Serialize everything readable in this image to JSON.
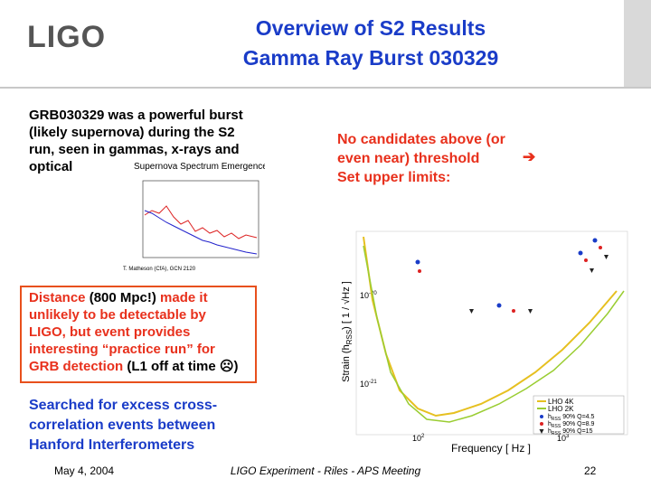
{
  "header": {
    "logo": "LIGO",
    "title": [
      "Overview of S2 Results",
      "Gamma Ray Burst 030329"
    ]
  },
  "intro": [
    "GRB030329 was a powerful burst",
    "(likely supernova) during the S2",
    "run, seen in gammas, x-rays and",
    "optical"
  ],
  "spectrum_figure": {
    "title": "Supernova Spectrum Emergence",
    "credit": "T. Matheson (CfA), GCN 2120"
  },
  "distance_box": {
    "lines": [
      [
        "Distance ",
        "(800 Mpc!)",
        " made it"
      ],
      [
        "unlikely to be detectable by"
      ],
      [
        "LIGO, but event provides"
      ],
      [
        "interesting “practice run” for"
      ],
      [
        "GRB detection ",
        "(L1 off at time ☹)"
      ]
    ]
  },
  "search": [
    "Searched for excess cross-",
    "correlation events between",
    "Hanford Interferometers"
  ],
  "result": {
    "lines": [
      "No candidates above (or",
      "even near) threshold",
      "Set upper limits:"
    ],
    "arrow": "➔"
  },
  "strain_plot": {
    "ylabel": [
      "Strain (h",
      "RSS",
      ") [ 1 / √Hz ]"
    ],
    "xlabel": "Frequency [ Hz ]",
    "xticks": [
      {
        "base": "10",
        "exp": "2"
      },
      {
        "base": "10",
        "exp": "3"
      }
    ],
    "yticks": [
      {
        "base": "10",
        "exp": "-20"
      },
      {
        "base": "10",
        "exp": "-21"
      }
    ],
    "legend": [
      "LHO 4K",
      "LHO 2K"
    ],
    "limit_symbol": {
      "h": "h",
      "sub": "RSS"
    },
    "limits": [
      "90% Q=4.5",
      "90% Q=8.9",
      "90% Q=15"
    ]
  },
  "footer": {
    "date": "May 4, 2004",
    "center": "LIGO Experiment - Riles - APS Meeting",
    "page": "22"
  }
}
